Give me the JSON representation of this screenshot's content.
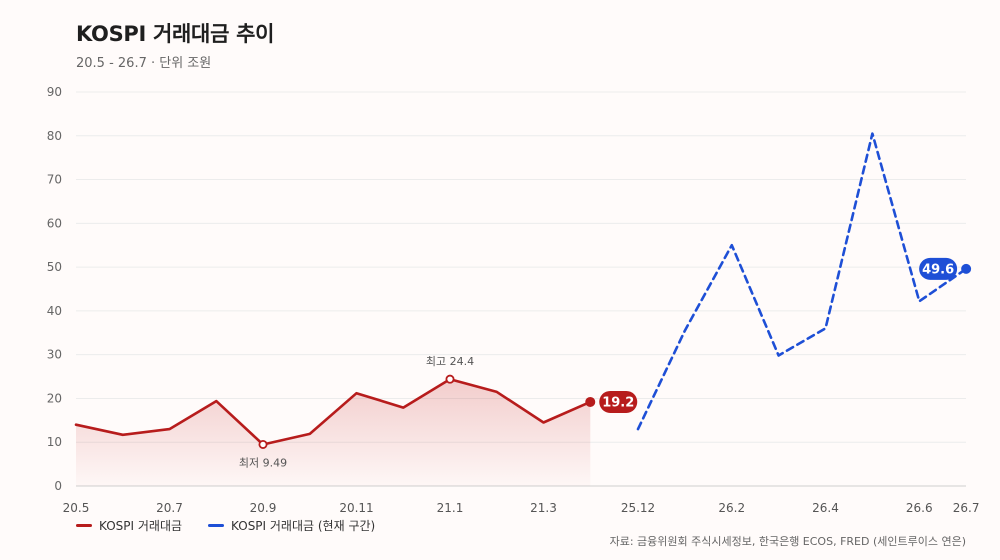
{
  "header": {
    "title": "KOSPI 거래대금 추이",
    "subtitle": "20.5 - 26.7 · 단위 조원"
  },
  "chart_data": {
    "type": "line",
    "ylim": [
      0,
      90
    ],
    "y_ticks": [
      0,
      10,
      20,
      30,
      40,
      50,
      60,
      70,
      80,
      90
    ],
    "x_tick_labels": [
      "20.5",
      "20.7",
      "20.9",
      "20.11",
      "21.1",
      "21.3",
      "25.12",
      "26.2",
      "26.4",
      "26.6",
      "26.7"
    ],
    "grid": true,
    "legend_position": "bottom-left",
    "series": [
      {
        "name": "KOSPI 거래대금",
        "color": "#b71c1c",
        "style": "solid-area",
        "x": [
          "20.5",
          "20.6",
          "20.7",
          "20.8",
          "20.9",
          "20.10",
          "20.11",
          "20.12",
          "21.1",
          "21.2",
          "21.3",
          "21.4"
        ],
        "values": [
          14.0,
          11.7,
          13.0,
          19.4,
          9.49,
          11.9,
          21.2,
          17.9,
          24.4,
          21.5,
          14.5,
          19.2
        ],
        "end_label": "19.2"
      },
      {
        "name": "KOSPI 거래대금 (현재 구간)",
        "color": "#1e4fd6",
        "style": "dashed",
        "x": [
          "25.12",
          "26.1",
          "26.2",
          "26.3",
          "26.4",
          "26.5",
          "26.6",
          "26.7"
        ],
        "values": [
          13.0,
          35.5,
          55.0,
          29.8,
          36.0,
          80.5,
          42.2,
          49.6
        ],
        "end_label": "49.6"
      }
    ],
    "annotations": [
      {
        "series": 0,
        "index": 8,
        "text": "최고 24.4",
        "position": "above"
      },
      {
        "series": 0,
        "index": 4,
        "text": "최저 9.49",
        "position": "below"
      }
    ]
  },
  "footer": {
    "source": "자료: 금융위원회 주식시세정보, 한국은행 ECOS, FRED (세인트루이스 연은)"
  }
}
